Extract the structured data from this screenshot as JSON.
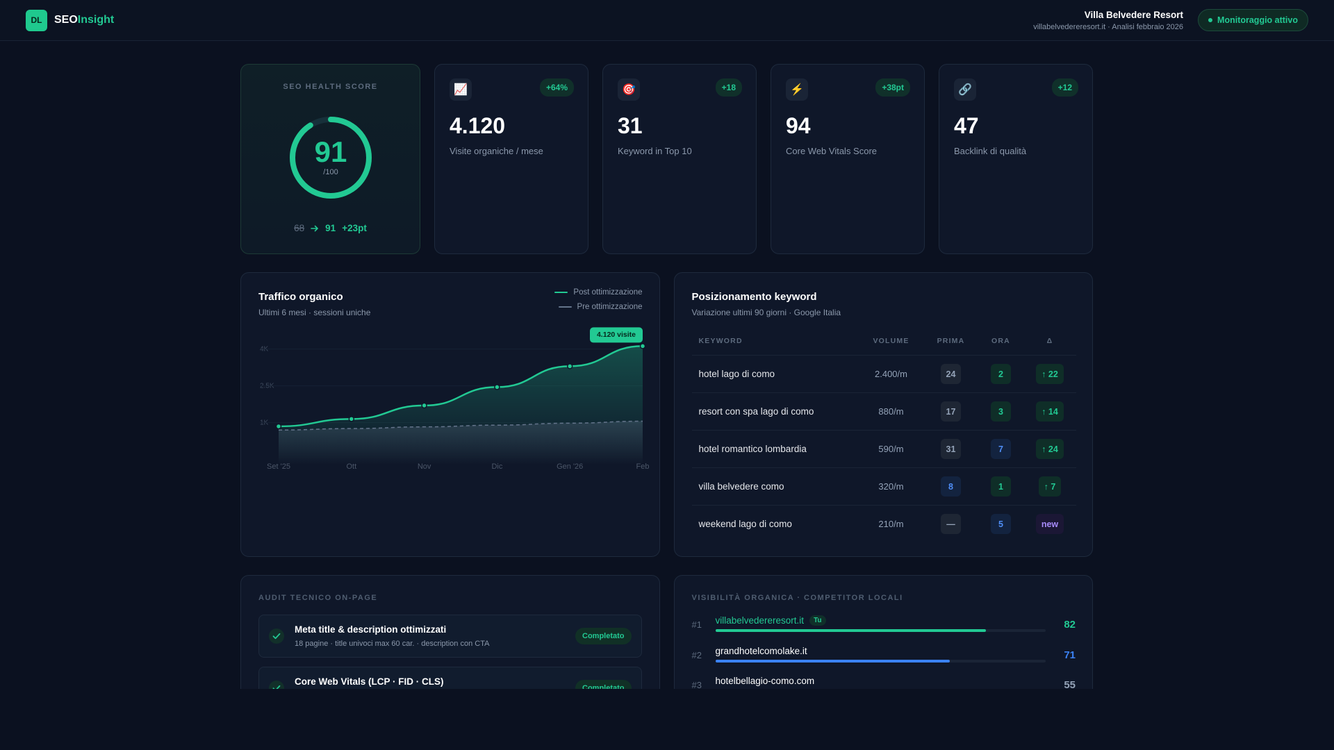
{
  "header": {
    "logo": "DL",
    "brand": "SEO",
    "brand_accent": "Insight",
    "client": "Villa Belvedere Resort",
    "client_detail": "villabelvedereresort.it · Analisi febbraio 2026",
    "status": "Monitoraggio attivo"
  },
  "health": {
    "label": "SEO HEALTH SCORE",
    "score": 91,
    "max": {
      "value": 100,
      "label": "/100"
    },
    "before": 68,
    "delta": "+23pt"
  },
  "kpis": [
    {
      "icon": "📈",
      "badge": "+64%",
      "value": "4.120",
      "label": "Visite organiche / mese"
    },
    {
      "icon": "🎯",
      "badge": "+18",
      "value": "31",
      "label": "Keyword in Top 10"
    },
    {
      "icon": "⚡",
      "badge": "+38pt",
      "value": "94",
      "label": "Core Web Vitals Score"
    },
    {
      "icon": "🔗",
      "badge": "+12",
      "value": "47",
      "label": "Backlink di qualità"
    }
  ],
  "chart_data": {
    "type": "line",
    "title": "Traffico organico",
    "subtitle": "Ultimi 6 mesi · sessioni uniche",
    "categories": [
      "Set '25",
      "Ott",
      "Nov",
      "Dic",
      "Gen '26",
      "Feb"
    ],
    "series": [
      {
        "name": "Post ottimizzazione",
        "color": "#22c993",
        "values": [
          850,
          1150,
          1700,
          2450,
          3300,
          4120
        ],
        "value_labels": [
          null,
          null,
          null,
          null,
          null,
          "4.120 visite"
        ],
        "area": true,
        "markers": true
      },
      {
        "name": "Pre ottimizzazione",
        "color": "#64748b",
        "values": [
          700,
          760,
          830,
          900,
          980,
          1060
        ],
        "dashed": true,
        "area": true
      }
    ],
    "ylim": [
      0,
      4500
    ],
    "yticks": [
      {
        "value": 1000,
        "label": "1K"
      },
      {
        "value": 2500,
        "label": "2.5K"
      },
      {
        "value": 4000,
        "label": "4K"
      }
    ],
    "grid": true,
    "legend": "top-right"
  },
  "keywords": {
    "title": "Posizionamento keyword",
    "subtitle": "Variazione ultimi 90 giorni · Google Italia",
    "columns": [
      "KEYWORD",
      "VOLUME",
      "PRIMA",
      "ORA",
      "Δ"
    ],
    "rows": [
      {
        "keyword": "hotel lago di como",
        "volume": "2.400/m",
        "before": "24",
        "now": "2",
        "delta": "↑ 22",
        "before_tone": "gray",
        "now_tone": "green",
        "delta_tone": "green"
      },
      {
        "keyword": "resort con spa lago di como",
        "volume": "880/m",
        "before": "17",
        "now": "3",
        "delta": "↑ 14",
        "before_tone": "gray",
        "now_tone": "green",
        "delta_tone": "green"
      },
      {
        "keyword": "hotel romantico lombardia",
        "volume": "590/m",
        "before": "31",
        "now": "7",
        "delta": "↑ 24",
        "before_tone": "gray",
        "now_tone": "blue",
        "delta_tone": "green"
      },
      {
        "keyword": "villa belvedere como",
        "volume": "320/m",
        "before": "8",
        "now": "1",
        "delta": "↑ 7",
        "before_tone": "blue",
        "now_tone": "green",
        "delta_tone": "green"
      },
      {
        "keyword": "weekend lago di como",
        "volume": "210/m",
        "before": "—",
        "now": "5",
        "delta": "new",
        "before_tone": "gray",
        "now_tone": "blue",
        "delta_tone": "purple"
      }
    ]
  },
  "audit": {
    "title": "AUDIT TECNICO ON-PAGE",
    "items": [
      {
        "title": "Meta title & description ottimizzati",
        "detail": "18 pagine · title univoci max 60 car. · description con CTA",
        "status": "Completato"
      },
      {
        "title": "Core Web Vitals (LCP · FID · CLS)",
        "status": "Completato"
      }
    ]
  },
  "competitors": {
    "title": "VISIBILITÀ ORGANICA · COMPETITOR LOCALI",
    "scale_max": 100,
    "items": [
      {
        "rank": "#1",
        "domain": "villabelvedereresort.it",
        "tag": "Tu",
        "score": 82,
        "color": "#22c993"
      },
      {
        "rank": "#2",
        "domain": "grandhotelcomolake.it",
        "score": 71,
        "color": "#3b82f6"
      },
      {
        "rank": "#3",
        "domain": "hotelbellagio-como.com",
        "score": 55,
        "color": "#94a3b8"
      }
    ]
  }
}
